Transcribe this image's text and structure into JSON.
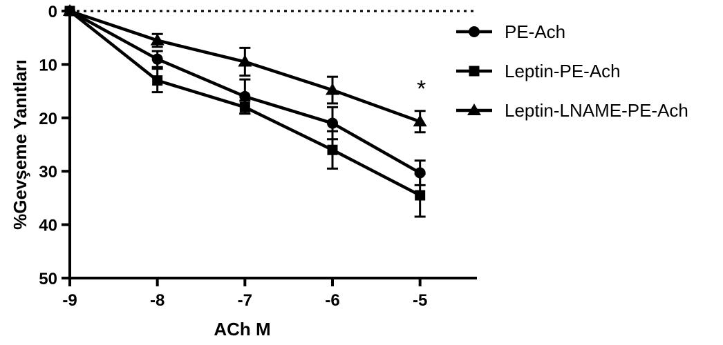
{
  "chart_data": {
    "type": "line",
    "xlabel": "ACh M",
    "ylabel": "%Gevşeme Yanıtları",
    "x": [
      -9,
      -8,
      -7,
      -6,
      -5
    ],
    "xlim": [
      -9,
      -4.35
    ],
    "ylim": [
      0,
      50
    ],
    "y_inverted": true,
    "x_ticks": [
      "-9",
      "-8",
      "-7",
      "-6",
      "-5"
    ],
    "y_ticks": [
      "0",
      "10",
      "20",
      "30",
      "40",
      "50"
    ],
    "reference_line": {
      "y": 0,
      "style": "dotted"
    },
    "grid": false,
    "legend_position": "right",
    "series": [
      {
        "name": "PE-Ach",
        "marker": "circle",
        "values": [
          0,
          9,
          16,
          21,
          30.3
        ],
        "errors": [
          0,
          1.5,
          3.2,
          3.0,
          2.3
        ]
      },
      {
        "name": "Leptin-PE-Ach",
        "marker": "square",
        "values": [
          0,
          13,
          18,
          26,
          34.5
        ],
        "errors": [
          0,
          2.2,
          1.2,
          3.5,
          4.0
        ]
      },
      {
        "name": "Leptin-LNAME-PE-Ach",
        "marker": "triangle",
        "values": [
          0,
          5.5,
          9.5,
          14.8,
          20.7
        ],
        "errors": [
          0,
          1.2,
          2.6,
          2.5,
          2.0
        ]
      }
    ],
    "annotations": [
      {
        "text": "*",
        "x": -5,
        "y": 16
      }
    ]
  }
}
